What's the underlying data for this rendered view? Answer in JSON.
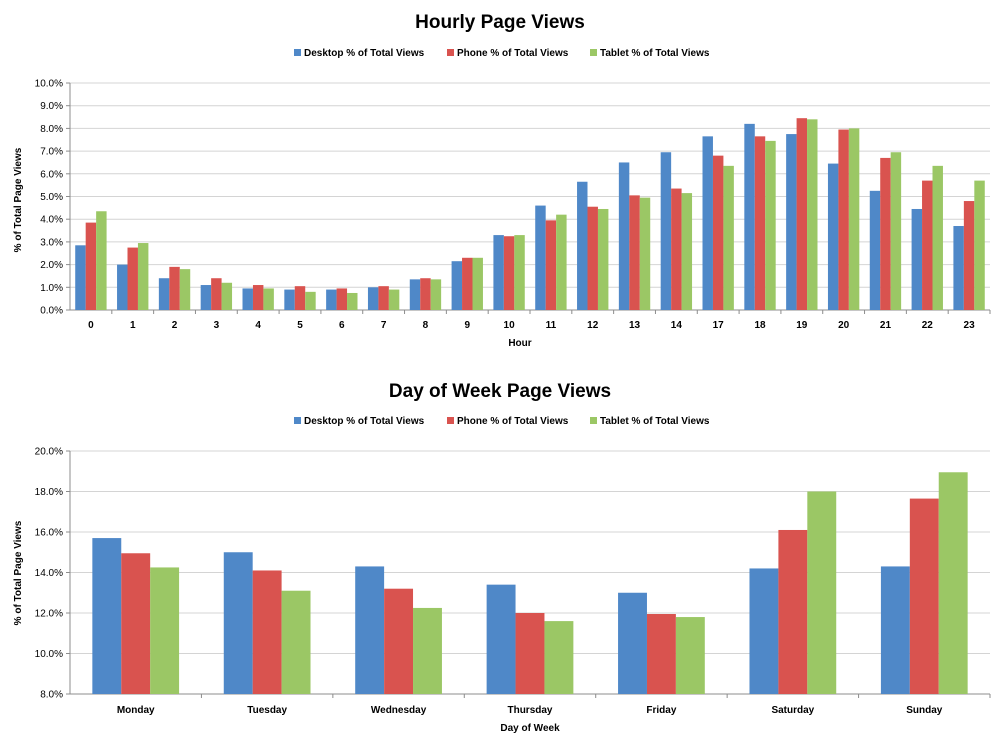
{
  "colors": {
    "desktop": "#4f88c8",
    "phone": "#d9534f",
    "tablet": "#9bc765",
    "grid": "#d4d4d4",
    "axis": "#8c8c8c"
  },
  "chart_data": [
    {
      "type": "bar",
      "title": "Hourly Page Views",
      "xlabel": "Hour",
      "ylabel": "% of Total Page Views",
      "ylim": [
        0,
        10
      ],
      "yticks": [
        "0.0%",
        "1.0%",
        "2.0%",
        "3.0%",
        "4.0%",
        "5.0%",
        "6.0%",
        "7.0%",
        "8.0%",
        "9.0%",
        "10.0%"
      ],
      "grid": true,
      "legend_position": "top",
      "categories": [
        "0",
        "1",
        "2",
        "3",
        "4",
        "5",
        "6",
        "7",
        "8",
        "9",
        "10",
        "11",
        "12",
        "13",
        "14",
        "17",
        "18",
        "19",
        "20",
        "21",
        "22",
        "23"
      ],
      "series": [
        {
          "name": "Desktop % of Total Views",
          "color": "#4f88c8",
          "values": [
            2.85,
            2.0,
            1.4,
            1.1,
            0.95,
            0.9,
            0.9,
            1.0,
            1.35,
            2.15,
            3.3,
            4.6,
            5.65,
            6.5,
            6.95,
            7.65,
            8.2,
            7.75,
            6.45,
            5.25,
            4.45,
            3.7
          ]
        },
        {
          "name": "Phone % of Total Views",
          "color": "#d9534f",
          "values": [
            3.85,
            2.75,
            1.9,
            1.4,
            1.1,
            1.05,
            0.95,
            1.05,
            1.4,
            2.3,
            3.25,
            3.95,
            4.55,
            5.05,
            5.35,
            6.8,
            7.65,
            8.45,
            7.95,
            6.7,
            5.7,
            4.8
          ]
        },
        {
          "name": "Tablet % of Total Views",
          "color": "#9bc765",
          "values": [
            4.35,
            2.95,
            1.8,
            1.2,
            0.95,
            0.8,
            0.75,
            0.9,
            1.35,
            2.3,
            3.3,
            4.2,
            4.45,
            4.95,
            5.15,
            6.35,
            7.45,
            8.4,
            8.0,
            6.95,
            6.35,
            5.7
          ]
        }
      ]
    },
    {
      "type": "bar",
      "title": "Day of Week Page Views",
      "xlabel": "Day of Week",
      "ylabel": "% of Total Page Views",
      "ylim": [
        8,
        20
      ],
      "yticks": [
        "8.0%",
        "10.0%",
        "12.0%",
        "14.0%",
        "16.0%",
        "18.0%",
        "20.0%"
      ],
      "grid": true,
      "legend_position": "top",
      "categories": [
        "Monday",
        "Tuesday",
        "Wednesday",
        "Thursday",
        "Friday",
        "Saturday",
        "Sunday"
      ],
      "series": [
        {
          "name": "Desktop % of Total Views",
          "color": "#4f88c8",
          "values": [
            15.7,
            15.0,
            14.3,
            13.4,
            13.0,
            14.2,
            14.3
          ]
        },
        {
          "name": "Phone % of Total Views",
          "color": "#d9534f",
          "values": [
            14.95,
            14.1,
            13.2,
            12.0,
            11.95,
            16.1,
            17.65
          ]
        },
        {
          "name": "Tablet % of Total Views",
          "color": "#9bc765",
          "values": [
            14.25,
            13.1,
            12.25,
            11.6,
            11.8,
            18.0,
            18.95
          ]
        }
      ]
    }
  ]
}
